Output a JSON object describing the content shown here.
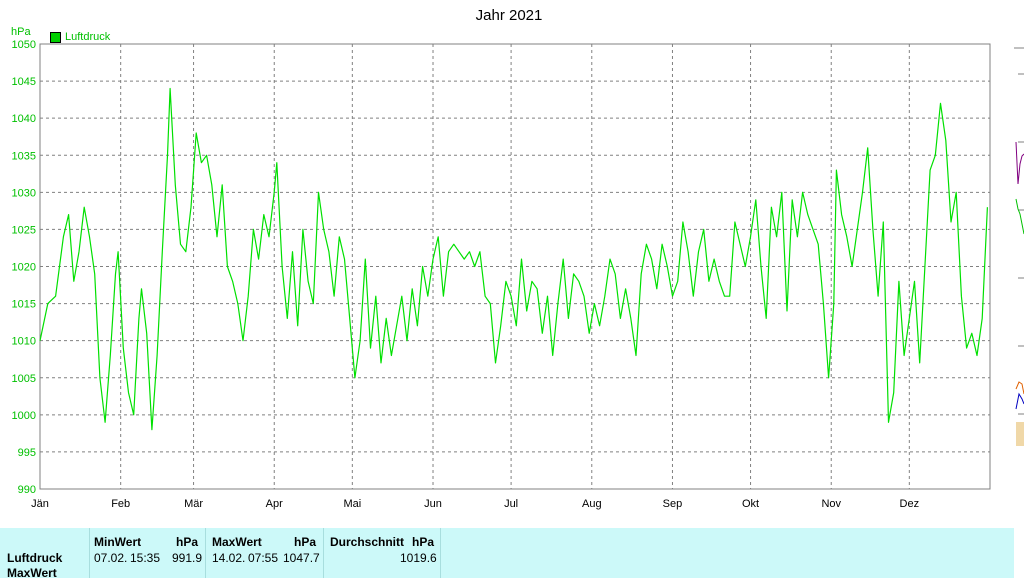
{
  "chart_data": {
    "type": "line",
    "title": "Jahr 2021",
    "ylabel": "hPa",
    "ylim": [
      990,
      1050
    ],
    "yticks": [
      990,
      995,
      1000,
      1005,
      1010,
      1015,
      1020,
      1025,
      1030,
      1035,
      1040,
      1045,
      1050
    ],
    "xlim": [
      1,
      366
    ],
    "x_unit": "day of year",
    "month_ticks": [
      {
        "label": "Jän",
        "day": 1
      },
      {
        "label": "Feb",
        "day": 32
      },
      {
        "label": "Mär",
        "day": 60
      },
      {
        "label": "Apr",
        "day": 91
      },
      {
        "label": "Mai",
        "day": 121
      },
      {
        "label": "Jun",
        "day": 152
      },
      {
        "label": "Jul",
        "day": 182
      },
      {
        "label": "Aug",
        "day": 213
      },
      {
        "label": "Sep",
        "day": 244
      },
      {
        "label": "Okt",
        "day": 274
      },
      {
        "label": "Nov",
        "day": 305
      },
      {
        "label": "Dez",
        "day": 335
      }
    ],
    "grid": true,
    "legend_position": "top-left",
    "series": [
      {
        "name": "Luftdruck",
        "color": "#00e000",
        "points": [
          [
            1,
            1010
          ],
          [
            4,
            1015
          ],
          [
            7,
            1016
          ],
          [
            10,
            1024
          ],
          [
            12,
            1027
          ],
          [
            14,
            1018
          ],
          [
            16,
            1022
          ],
          [
            18,
            1028
          ],
          [
            20,
            1024
          ],
          [
            22,
            1019
          ],
          [
            24,
            1005
          ],
          [
            26,
            999
          ],
          [
            28,
            1008
          ],
          [
            30,
            1019
          ],
          [
            31,
            1022
          ],
          [
            33,
            1009
          ],
          [
            35,
            1003
          ],
          [
            37,
            1000
          ],
          [
            39,
            1013
          ],
          [
            40,
            1017
          ],
          [
            42,
            1011
          ],
          [
            44,
            998
          ],
          [
            46,
            1008
          ],
          [
            48,
            1022
          ],
          [
            50,
            1035
          ],
          [
            51,
            1044
          ],
          [
            53,
            1031
          ],
          [
            55,
            1023
          ],
          [
            57,
            1022
          ],
          [
            59,
            1028
          ],
          [
            61,
            1038
          ],
          [
            63,
            1034
          ],
          [
            65,
            1035
          ],
          [
            67,
            1031
          ],
          [
            69,
            1024
          ],
          [
            71,
            1031
          ],
          [
            73,
            1020
          ],
          [
            75,
            1018
          ],
          [
            77,
            1015
          ],
          [
            79,
            1010
          ],
          [
            81,
            1016
          ],
          [
            83,
            1025
          ],
          [
            85,
            1021
          ],
          [
            87,
            1027
          ],
          [
            89,
            1024
          ],
          [
            91,
            1030
          ],
          [
            92,
            1034
          ],
          [
            94,
            1020
          ],
          [
            96,
            1013
          ],
          [
            98,
            1022
          ],
          [
            100,
            1012
          ],
          [
            102,
            1025
          ],
          [
            104,
            1018
          ],
          [
            106,
            1015
          ],
          [
            108,
            1030
          ],
          [
            110,
            1025
          ],
          [
            112,
            1022
          ],
          [
            114,
            1016
          ],
          [
            116,
            1024
          ],
          [
            118,
            1021
          ],
          [
            120,
            1013
          ],
          [
            122,
            1005
          ],
          [
            124,
            1010
          ],
          [
            126,
            1021
          ],
          [
            128,
            1009
          ],
          [
            130,
            1016
          ],
          [
            132,
            1007
          ],
          [
            134,
            1013
          ],
          [
            136,
            1008
          ],
          [
            138,
            1012
          ],
          [
            140,
            1016
          ],
          [
            142,
            1010
          ],
          [
            144,
            1017
          ],
          [
            146,
            1012
          ],
          [
            148,
            1020
          ],
          [
            150,
            1016
          ],
          [
            152,
            1021
          ],
          [
            154,
            1024
          ],
          [
            156,
            1016
          ],
          [
            158,
            1022
          ],
          [
            160,
            1023
          ],
          [
            162,
            1022
          ],
          [
            164,
            1021
          ],
          [
            166,
            1022
          ],
          [
            168,
            1020
          ],
          [
            170,
            1022
          ],
          [
            172,
            1016
          ],
          [
            174,
            1015
          ],
          [
            176,
            1007
          ],
          [
            178,
            1012
          ],
          [
            180,
            1018
          ],
          [
            182,
            1016
          ],
          [
            184,
            1012
          ],
          [
            186,
            1021
          ],
          [
            188,
            1014
          ],
          [
            190,
            1018
          ],
          [
            192,
            1017
          ],
          [
            194,
            1011
          ],
          [
            196,
            1016
          ],
          [
            198,
            1008
          ],
          [
            200,
            1015
          ],
          [
            202,
            1021
          ],
          [
            204,
            1013
          ],
          [
            206,
            1019
          ],
          [
            208,
            1018
          ],
          [
            210,
            1016
          ],
          [
            212,
            1011
          ],
          [
            214,
            1015
          ],
          [
            216,
            1012
          ],
          [
            218,
            1016
          ],
          [
            220,
            1021
          ],
          [
            222,
            1019
          ],
          [
            224,
            1013
          ],
          [
            226,
            1017
          ],
          [
            228,
            1013
          ],
          [
            230,
            1008
          ],
          [
            232,
            1019
          ],
          [
            234,
            1023
          ],
          [
            236,
            1021
          ],
          [
            238,
            1017
          ],
          [
            240,
            1023
          ],
          [
            242,
            1020
          ],
          [
            244,
            1016
          ],
          [
            246,
            1018
          ],
          [
            248,
            1026
          ],
          [
            250,
            1022
          ],
          [
            252,
            1016
          ],
          [
            254,
            1022
          ],
          [
            256,
            1025
          ],
          [
            258,
            1018
          ],
          [
            260,
            1021
          ],
          [
            262,
            1018
          ],
          [
            264,
            1016
          ],
          [
            266,
            1016
          ],
          [
            268,
            1026
          ],
          [
            270,
            1023
          ],
          [
            272,
            1020
          ],
          [
            274,
            1024
          ],
          [
            276,
            1029
          ],
          [
            278,
            1020
          ],
          [
            280,
            1013
          ],
          [
            282,
            1028
          ],
          [
            284,
            1024
          ],
          [
            286,
            1030
          ],
          [
            288,
            1014
          ],
          [
            290,
            1029
          ],
          [
            292,
            1024
          ],
          [
            294,
            1030
          ],
          [
            296,
            1027
          ],
          [
            298,
            1025
          ],
          [
            300,
            1023
          ],
          [
            302,
            1015
          ],
          [
            304,
            1005
          ],
          [
            306,
            1015
          ],
          [
            307,
            1033
          ],
          [
            309,
            1027
          ],
          [
            311,
            1024
          ],
          [
            313,
            1020
          ],
          [
            315,
            1025
          ],
          [
            317,
            1030
          ],
          [
            319,
            1036
          ],
          [
            321,
            1025
          ],
          [
            323,
            1016
          ],
          [
            325,
            1026
          ],
          [
            327,
            999
          ],
          [
            329,
            1003
          ],
          [
            331,
            1018
          ],
          [
            333,
            1008
          ],
          [
            335,
            1013
          ],
          [
            337,
            1018
          ],
          [
            339,
            1007
          ],
          [
            341,
            1020
          ],
          [
            343,
            1033
          ],
          [
            345,
            1035
          ],
          [
            347,
            1042
          ],
          [
            349,
            1037
          ],
          [
            351,
            1026
          ],
          [
            353,
            1030
          ],
          [
            355,
            1016
          ],
          [
            357,
            1009
          ],
          [
            359,
            1011
          ],
          [
            361,
            1008
          ],
          [
            363,
            1013
          ],
          [
            365,
            1028
          ]
        ]
      }
    ]
  },
  "table": {
    "row_label_1": "Luftdruck",
    "row_label_2": "MaxWert",
    "min": {
      "header": "MinWert",
      "unit": "hPa",
      "date": "07.02.",
      "time": "15:35",
      "value": "991.9"
    },
    "max": {
      "header": "MaxWert",
      "unit": "hPa",
      "date": "14.02.",
      "time": "07:55",
      "value": "1047.7"
    },
    "avg": {
      "header": "Durchschnitt",
      "unit": "hPa",
      "value": "1019.6"
    }
  }
}
